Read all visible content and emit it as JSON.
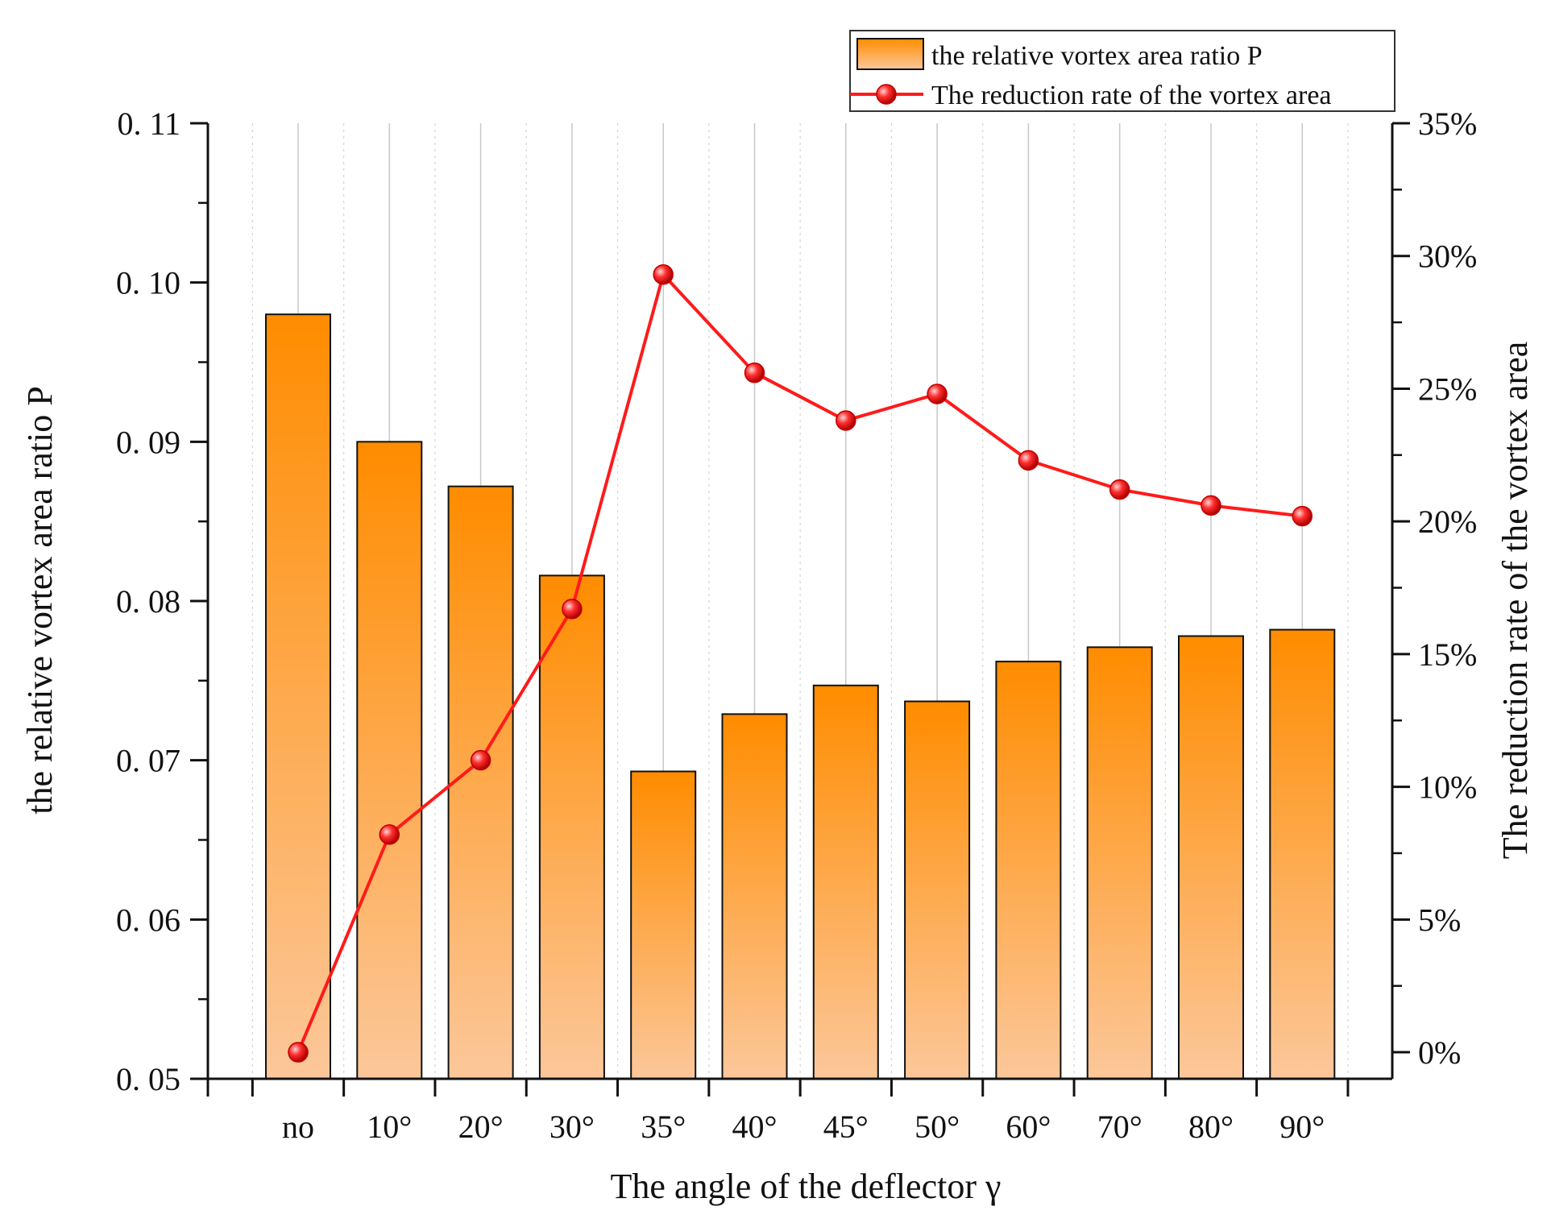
{
  "chart_data": {
    "type": "bar",
    "xlabel": "The angle of the deflector γ",
    "ylabel_left": "the relative vortex area ratio P",
    "ylabel_right": "The reduction rate of the vortex area",
    "categories": [
      "no",
      "10°",
      "20°",
      "30°",
      "35°",
      "40°",
      "45°",
      "50°",
      "60°",
      "70°",
      "80°",
      "90°"
    ],
    "left_axis": {
      "ylim": [
        0.05,
        0.11
      ],
      "ticks": [
        0.05,
        0.06,
        0.07,
        0.08,
        0.09,
        0.1,
        0.11
      ],
      "tick_labels": [
        "0. 05",
        "0. 06",
        "0. 07",
        "0. 08",
        "0. 09",
        "0. 10",
        "0. 11"
      ]
    },
    "right_axis": {
      "ylim": [
        -0.01,
        0.35
      ],
      "ticks": [
        0,
        0.05,
        0.1,
        0.15,
        0.2,
        0.25,
        0.3,
        0.35
      ],
      "tick_labels": [
        "0%",
        "5%",
        "10%",
        "15%",
        "20%",
        "25%",
        "30%",
        "35%"
      ]
    },
    "series": [
      {
        "name": "the relative vortex area ratio P",
        "kind": "bar",
        "axis": "left",
        "values": [
          0.098,
          0.09,
          0.0872,
          0.0816,
          0.0693,
          0.0729,
          0.0747,
          0.0737,
          0.0762,
          0.0771,
          0.0778,
          0.0782
        ],
        "color_top": "#ff8c00",
        "color_bottom": "#fcc79a"
      },
      {
        "name": "The reduction rate of the vortex area",
        "kind": "line",
        "axis": "right",
        "values": [
          0.0,
          0.082,
          0.11,
          0.167,
          0.293,
          0.256,
          0.238,
          0.248,
          0.223,
          0.212,
          0.206,
          0.202
        ],
        "color": "#ff1a1a"
      }
    ],
    "legend_position": "top-right",
    "grid": "vertical"
  }
}
